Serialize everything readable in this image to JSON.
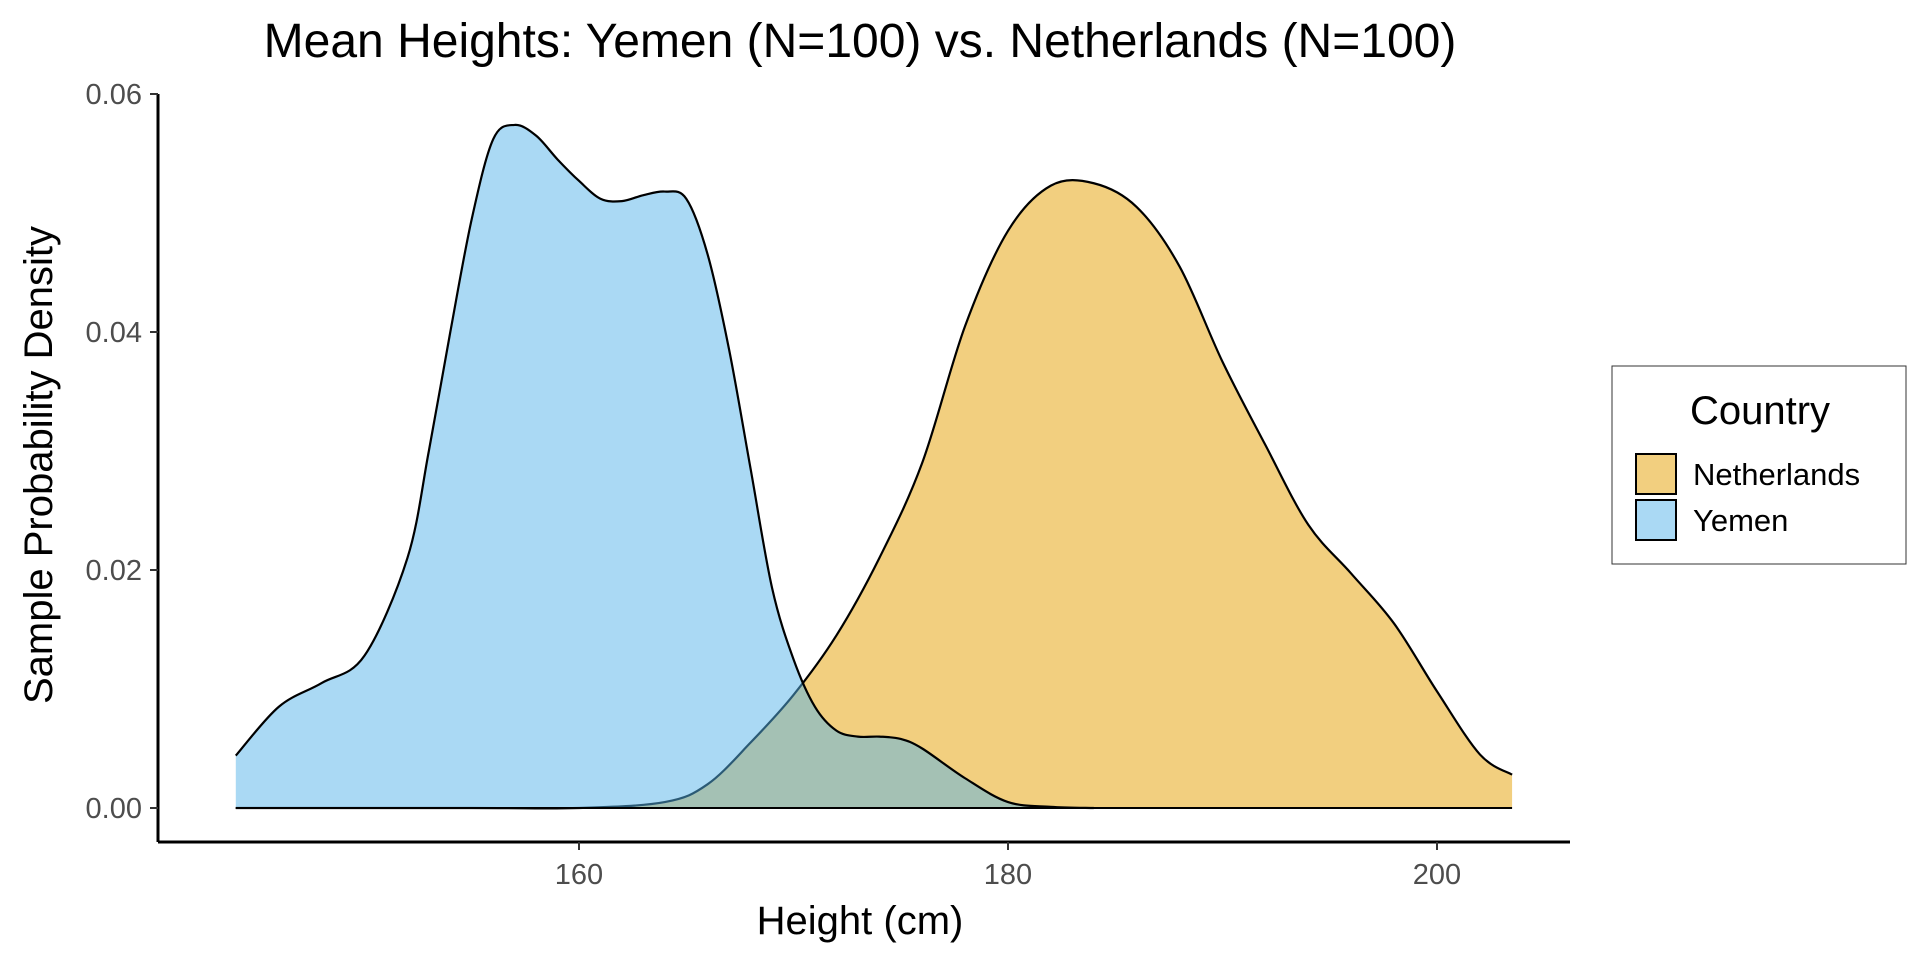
{
  "chart_data": {
    "type": "area",
    "title": "Mean Heights: Yemen (N=100) vs. Netherlands (N=100)",
    "xlabel": "Height (cm)",
    "ylabel": "Sample Probability Density",
    "xlim": [
      141.5,
      207.5
    ],
    "ylim": [
      0,
      0.06
    ],
    "x_ticks": [
      160,
      180,
      200
    ],
    "x_tick_labels": [
      "160",
      "180",
      "200"
    ],
    "y_ticks": [
      0,
      0.02,
      0.04,
      0.06
    ],
    "y_tick_labels": [
      "0.00",
      "0.02",
      "0.04",
      "0.06"
    ],
    "grid": false,
    "legend": {
      "title": "Country",
      "position": "right"
    },
    "series": [
      {
        "name": "Netherlands",
        "color": "#E69F00",
        "fill_opacity": 0.5,
        "x": [
          144.0,
          155.0,
          160.0,
          164.0,
          166.0,
          168.0,
          170.0,
          172.0,
          174.0,
          176.0,
          178.0,
          180.0,
          182.0,
          184.0,
          186.0,
          188.0,
          190.0,
          192.0,
          194.0,
          196.0,
          198.0,
          200.0,
          202.0,
          203.5
        ],
        "y": [
          0.0,
          0.0,
          0.0,
          0.0005,
          0.002,
          0.0055,
          0.0095,
          0.0145,
          0.021,
          0.029,
          0.0405,
          0.0485,
          0.0523,
          0.0525,
          0.0505,
          0.0455,
          0.0375,
          0.0305,
          0.0238,
          0.0197,
          0.0155,
          0.0098,
          0.0045,
          0.0028
        ]
      },
      {
        "name": "Yemen",
        "color": "#56B4E9",
        "fill_opacity": 0.5,
        "x": [
          144.0,
          146.0,
          148.0,
          150.0,
          152.0,
          153.0,
          154.0,
          155.0,
          156.0,
          157.0,
          158.0,
          159.0,
          160.0,
          161.0,
          162.0,
          163.0,
          164.0,
          165.0,
          166.0,
          167.0,
          168.0,
          169.0,
          170.0,
          171.0,
          172.0,
          173.0,
          174.0,
          175.0,
          176.0,
          178.0,
          180.0,
          182.0,
          184.0
        ],
        "y": [
          0.0044,
          0.0085,
          0.0105,
          0.0128,
          0.021,
          0.03,
          0.04,
          0.0495,
          0.0562,
          0.0574,
          0.0565,
          0.0545,
          0.0527,
          0.0512,
          0.051,
          0.0515,
          0.0518,
          0.0512,
          0.0465,
          0.0385,
          0.0285,
          0.0185,
          0.0125,
          0.0085,
          0.0065,
          0.006,
          0.006,
          0.0058,
          0.005,
          0.0025,
          0.0005,
          0.0001,
          0.0
        ]
      }
    ]
  }
}
